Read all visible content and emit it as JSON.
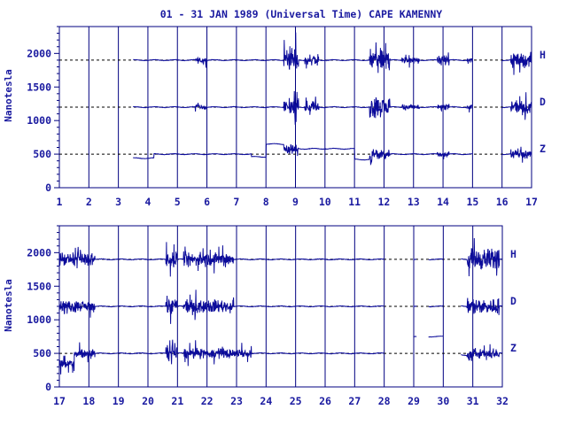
{
  "chart_data": {
    "type": "line",
    "title": "01 - 31 JAN 1989 (Universal Time) CAPE KAMENNY",
    "ylabel": "Nanotesla",
    "ylim": [
      0,
      2400
    ],
    "yticks": [
      0,
      500,
      1000,
      1500,
      2000
    ],
    "baselines": {
      "H": 1900,
      "D": 1200,
      "Z": 500
    },
    "colors": {
      "ink": "#0b0b9a",
      "axis": "#000080",
      "dash": "#000000"
    },
    "series_labels": [
      "H",
      "D",
      "Z"
    ],
    "panels": [
      {
        "xlim": [
          1,
          17
        ],
        "xticks": [
          1,
          2,
          3,
          4,
          5,
          6,
          7,
          8,
          9,
          10,
          11,
          12,
          13,
          14,
          15,
          16,
          17
        ],
        "data_start": 3.5,
        "series": [
          {
            "name": "H",
            "segments": [
              [
                3.5,
                15.0
              ],
              [
                16.0,
                17.0
              ]
            ],
            "disturb": [
              [
                5.6,
                6.0,
                120
              ],
              [
                8.6,
                9.1,
                380
              ],
              [
                9.3,
                9.8,
                220
              ],
              [
                11.5,
                12.2,
                420
              ],
              [
                12.6,
                13.2,
                130
              ],
              [
                13.8,
                14.2,
                160
              ],
              [
                14.8,
                15.0,
                120
              ],
              [
                16.3,
                17.0,
                260
              ]
            ]
          },
          {
            "name": "D",
            "segments": [
              [
                3.5,
                15.0
              ],
              [
                16.0,
                17.0
              ]
            ],
            "disturb": [
              [
                5.6,
                6.0,
                100
              ],
              [
                8.6,
                9.1,
                300
              ],
              [
                9.3,
                9.8,
                200
              ],
              [
                11.5,
                12.2,
                380
              ],
              [
                12.6,
                13.2,
                110
              ],
              [
                13.8,
                14.2,
                140
              ],
              [
                14.8,
                15.0,
                100
              ],
              [
                16.3,
                17.0,
                220
              ]
            ]
          },
          {
            "name": "Z",
            "segments": [
              [
                3.5,
                15.0
              ],
              [
                16.0,
                17.0
              ]
            ],
            "disturb": [
              [
                8.6,
                9.1,
                180
              ],
              [
                11.5,
                12.2,
                220
              ],
              [
                13.8,
                14.2,
                100
              ],
              [
                16.3,
                17.0,
                140
              ]
            ],
            "level_shifts": [
              [
                3.5,
                4.2,
                -60
              ],
              [
                7.5,
                8.0,
                -40
              ],
              [
                8.0,
                8.6,
                150
              ],
              [
                8.6,
                11.0,
                80
              ],
              [
                11.0,
                11.6,
                -80
              ]
            ]
          }
        ]
      },
      {
        "xlim": [
          17,
          32
        ],
        "xticks": [
          17,
          18,
          19,
          20,
          21,
          22,
          23,
          24,
          25,
          26,
          27,
          28,
          29,
          30,
          31,
          32
        ],
        "data_start": 17.0,
        "series": [
          {
            "name": "H",
            "segments": [
              [
                17.0,
                28.0
              ],
              [
                29.0,
                29.1
              ],
              [
                29.5,
                30.0
              ],
              [
                30.6,
                32.0
              ]
            ],
            "disturb": [
              [
                17.0,
                18.2,
                260
              ],
              [
                20.6,
                21.0,
                300
              ],
              [
                21.2,
                22.9,
                260
              ],
              [
                30.8,
                31.9,
                420
              ]
            ]
          },
          {
            "name": "D",
            "segments": [
              [
                17.0,
                28.0
              ],
              [
                29.0,
                29.1
              ],
              [
                29.5,
                30.0
              ],
              [
                30.6,
                32.0
              ]
            ],
            "disturb": [
              [
                17.0,
                18.2,
                200
              ],
              [
                20.6,
                21.0,
                320
              ],
              [
                21.2,
                22.9,
                240
              ],
              [
                30.8,
                31.9,
                300
              ]
            ]
          },
          {
            "name": "Z",
            "segments": [
              [
                17.0,
                28.0
              ],
              [
                29.0,
                29.1
              ],
              [
                29.5,
                30.0
              ],
              [
                30.6,
                32.0
              ]
            ],
            "disturb": [
              [
                17.0,
                18.2,
                180
              ],
              [
                20.6,
                21.0,
                300
              ],
              [
                21.2,
                22.9,
                180
              ],
              [
                22.9,
                23.5,
                150
              ],
              [
                30.8,
                31.9,
                200
              ]
            ],
            "level_shifts": [
              [
                17.0,
                17.5,
                -150
              ],
              [
                29.0,
                30.0,
                250
              ],
              [
                30.6,
                31.0,
                -30
              ]
            ]
          }
        ]
      }
    ]
  }
}
